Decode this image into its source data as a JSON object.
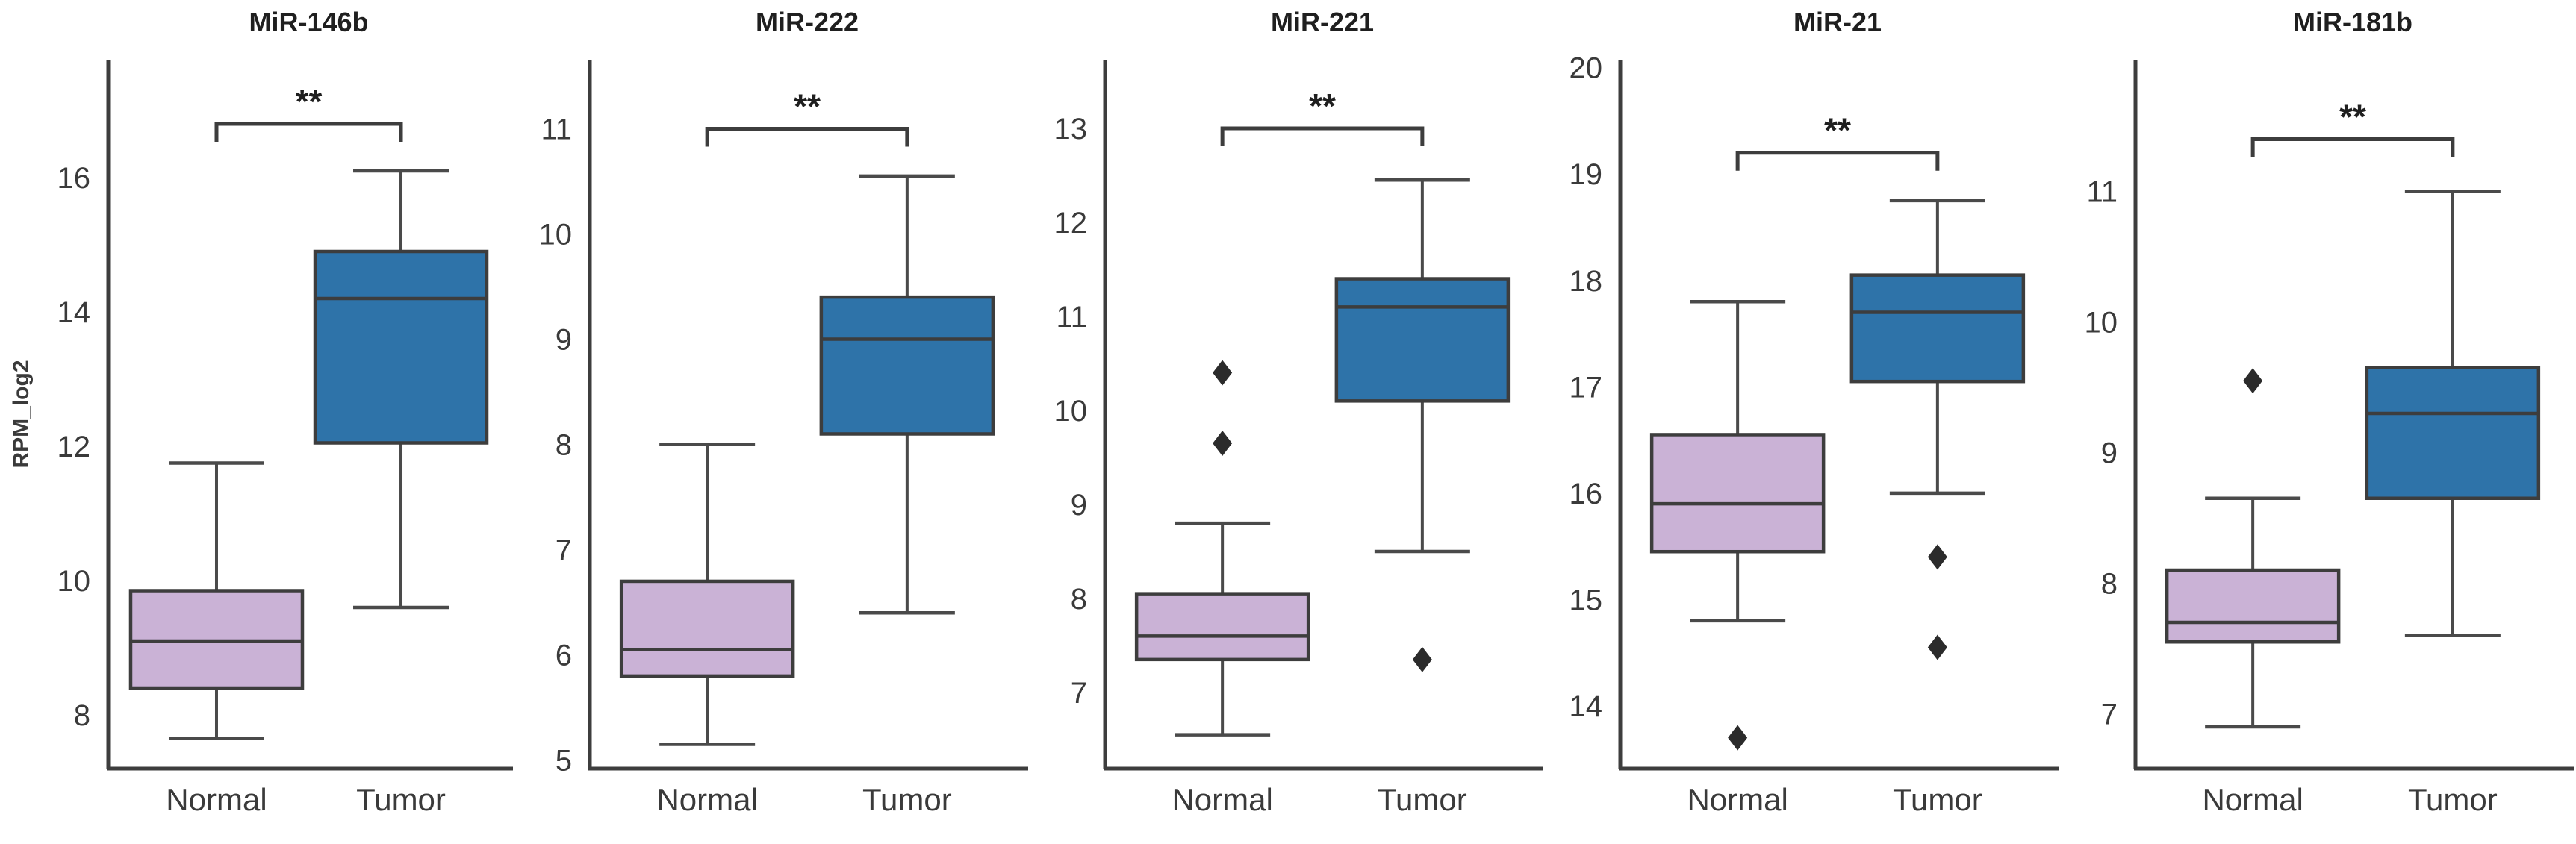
{
  "figure": {
    "ylabel": "RPM_log2",
    "group_labels": [
      "Normal",
      "Tumor"
    ],
    "significance_label": "**",
    "colors": {
      "normal_fill": "#cab2d6",
      "tumor_fill": "#2e73a9",
      "box_stroke": "#3d3d3d",
      "whisker_stroke": "#4a4a4a",
      "outlier_fill": "#2b2b2b",
      "axis_stroke": "#3d3d3d",
      "text": "#3a3a3a",
      "title_text": "#1f1f1f",
      "background": "#ffffff"
    }
  },
  "chart_data": [
    {
      "type": "box",
      "title": "MiR-146b",
      "ylabel": "RPM_log2",
      "categories": [
        "Normal",
        "Tumor"
      ],
      "yticks": [
        8,
        10,
        12,
        14,
        16
      ],
      "ylim": [
        7.2,
        17.7
      ],
      "significance": {
        "label": "**",
        "y": 16.8
      },
      "series": [
        {
          "name": "Normal",
          "whisker_low": 7.65,
          "q1": 8.4,
          "median": 9.1,
          "q3": 9.85,
          "whisker_high": 11.75,
          "outliers": [],
          "color_key": "normal_fill"
        },
        {
          "name": "Tumor",
          "whisker_low": 9.6,
          "q1": 12.05,
          "median": 14.2,
          "q3": 14.9,
          "whisker_high": 16.1,
          "outliers": [],
          "color_key": "tumor_fill"
        }
      ]
    },
    {
      "type": "box",
      "title": "MiR-222",
      "ylabel": "",
      "categories": [
        "Normal",
        "Tumor"
      ],
      "yticks": [
        5,
        6,
        7,
        8,
        9,
        10,
        11
      ],
      "ylim": [
        4.92,
        11.62
      ],
      "significance": {
        "label": "**",
        "y": 11.0
      },
      "series": [
        {
          "name": "Normal",
          "whisker_low": 5.15,
          "q1": 5.8,
          "median": 6.05,
          "q3": 6.7,
          "whisker_high": 8.0,
          "outliers": [],
          "color_key": "normal_fill"
        },
        {
          "name": "Tumor",
          "whisker_low": 6.4,
          "q1": 8.1,
          "median": 9.0,
          "q3": 9.4,
          "whisker_high": 10.55,
          "outliers": [],
          "color_key": "tumor_fill"
        }
      ]
    },
    {
      "type": "box",
      "title": "MiR-221",
      "ylabel": "",
      "categories": [
        "Normal",
        "Tumor"
      ],
      "yticks": [
        7,
        8,
        9,
        10,
        11,
        12,
        13
      ],
      "ylim": [
        6.19,
        13.69
      ],
      "significance": {
        "label": "**",
        "y": 13.0
      },
      "series": [
        {
          "name": "Normal",
          "whisker_low": 6.55,
          "q1": 7.35,
          "median": 7.6,
          "q3": 8.05,
          "whisker_high": 8.8,
          "outliers": [
            9.65,
            10.4
          ],
          "color_key": "normal_fill"
        },
        {
          "name": "Tumor",
          "whisker_low": 8.5,
          "q1": 10.1,
          "median": 11.1,
          "q3": 11.4,
          "whisker_high": 12.45,
          "outliers": [
            7.35
          ],
          "color_key": "tumor_fill"
        }
      ]
    },
    {
      "type": "box",
      "title": "MiR-21",
      "ylabel": "",
      "categories": [
        "Normal",
        "Tumor"
      ],
      "yticks": [
        14,
        15,
        16,
        17,
        18,
        19,
        20
      ],
      "ylim": [
        13.41,
        20.04
      ],
      "significance": {
        "label": "**",
        "y": 19.2
      },
      "series": [
        {
          "name": "Normal",
          "whisker_low": 14.8,
          "q1": 15.45,
          "median": 15.9,
          "q3": 16.55,
          "whisker_high": 17.8,
          "outliers": [
            13.7
          ],
          "color_key": "normal_fill"
        },
        {
          "name": "Tumor",
          "whisker_low": 16.0,
          "q1": 17.05,
          "median": 17.7,
          "q3": 18.05,
          "whisker_high": 18.75,
          "outliers": [
            15.4,
            14.55
          ],
          "color_key": "tumor_fill"
        }
      ]
    },
    {
      "type": "box",
      "title": "MiR-181b",
      "ylabel": "",
      "categories": [
        "Normal",
        "Tumor"
      ],
      "yticks": [
        7,
        8,
        9,
        10,
        11
      ],
      "ylim": [
        6.58,
        11.98
      ],
      "significance": {
        "label": "**",
        "y": 11.4
      },
      "series": [
        {
          "name": "Normal",
          "whisker_low": 6.9,
          "q1": 7.55,
          "median": 7.7,
          "q3": 8.1,
          "whisker_high": 8.65,
          "outliers": [
            9.55
          ],
          "color_key": "normal_fill"
        },
        {
          "name": "Tumor",
          "whisker_low": 7.6,
          "q1": 8.65,
          "median": 9.3,
          "q3": 9.65,
          "whisker_high": 11.0,
          "outliers": [],
          "color_key": "tumor_fill"
        }
      ]
    }
  ]
}
